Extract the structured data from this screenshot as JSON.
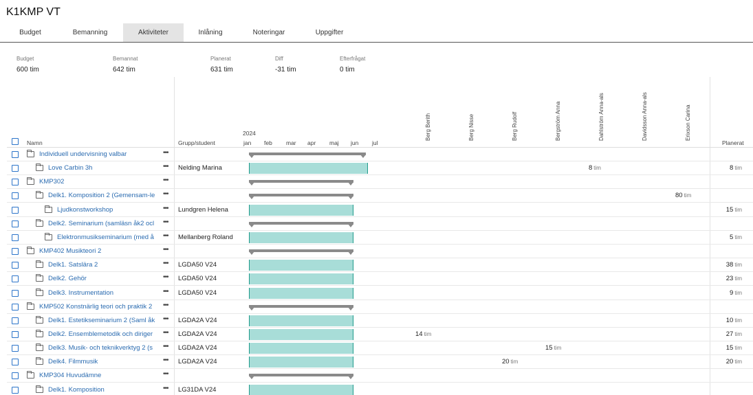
{
  "title": "K1KMP VT",
  "tabs": [
    "Budget",
    "Bemanning",
    "Aktiviteter",
    "Inlåning",
    "Noteringar",
    "Uppgifter"
  ],
  "summary": [
    {
      "label": "Budget",
      "value": "600 tim"
    },
    {
      "label": "Bemannat",
      "value": "642 tim"
    },
    {
      "label": "Planerat",
      "value": "631 tim"
    },
    {
      "label": "Diff",
      "value": "-31 tim"
    },
    {
      "label": "Efterfrågat",
      "value": "0 tim"
    }
  ],
  "headers": {
    "name": "Namn",
    "group": "Grupp/student",
    "year": "2024",
    "months": [
      "jan",
      "feb",
      "mar",
      "apr",
      "maj",
      "jun",
      "jul"
    ],
    "planned": "Planerat"
  },
  "persons": [
    "Berg Berith",
    "Berg Nisse",
    "Berg Rudolf",
    "Bergström Anna",
    "Dahlström Anna-als",
    "Davidsson Anna-als",
    "Erixson Carina"
  ],
  "unit": "tim",
  "rows": [
    {
      "name": "Individuell undervisning valbar",
      "indent": 0,
      "group": "",
      "summary": true,
      "bar_start": 0,
      "bar_end": 0.98,
      "person_idx": null,
      "hours": "",
      "planned": ""
    },
    {
      "name": "Love Carbin 3h",
      "indent": 1,
      "group": "Nelding Marina",
      "summary": false,
      "bar_start": 0,
      "bar_end": 1.0,
      "person_idx": 4,
      "hours": "8",
      "planned": "8"
    },
    {
      "name": "KMP302",
      "indent": 0,
      "group": "",
      "summary": true,
      "bar_start": 0,
      "bar_end": 0.88,
      "person_idx": null,
      "hours": "",
      "planned": ""
    },
    {
      "name": "Delk1. Komposition 2 (Gemensam-le",
      "indent": 1,
      "group": "",
      "summary": true,
      "bar_start": 0,
      "bar_end": 0.88,
      "person_idx": 6,
      "hours": "80",
      "planned": ""
    },
    {
      "name": "Ljudkonstworkshop",
      "indent": 2,
      "group": "Lundgren Helena",
      "summary": false,
      "bar_start": 0,
      "bar_end": 0.88,
      "person_idx": null,
      "hours": "",
      "planned": "15"
    },
    {
      "name": "Delk2. Seminarium (samläsn åk2 ocl",
      "indent": 1,
      "group": "",
      "summary": true,
      "bar_start": 0,
      "bar_end": 0.88,
      "person_idx": null,
      "hours": "",
      "planned": ""
    },
    {
      "name": "Elektronmusikseminarium (med å",
      "indent": 2,
      "group": "Mellanberg Roland",
      "summary": false,
      "bar_start": 0,
      "bar_end": 0.88,
      "person_idx": null,
      "hours": "",
      "planned": "5"
    },
    {
      "name": "KMP402 Musikteori 2",
      "indent": 0,
      "group": "",
      "summary": true,
      "bar_start": 0,
      "bar_end": 0.88,
      "person_idx": null,
      "hours": "",
      "planned": ""
    },
    {
      "name": "Delk1. Satslära 2",
      "indent": 1,
      "group": "LGDA50 V24",
      "summary": false,
      "bar_start": 0,
      "bar_end": 0.88,
      "person_idx": null,
      "hours": "",
      "planned": "38"
    },
    {
      "name": "Delk2. Gehör",
      "indent": 1,
      "group": "LGDA50 V24",
      "summary": false,
      "bar_start": 0,
      "bar_end": 0.88,
      "person_idx": null,
      "hours": "",
      "planned": "23"
    },
    {
      "name": "Delk3. Instrumentation",
      "indent": 1,
      "group": "LGDA50 V24",
      "summary": false,
      "bar_start": 0,
      "bar_end": 0.88,
      "person_idx": null,
      "hours": "",
      "planned": "9"
    },
    {
      "name": "KMP502 Konstnärlig teori och praktik 2",
      "indent": 0,
      "group": "",
      "summary": true,
      "bar_start": 0,
      "bar_end": 0.88,
      "person_idx": null,
      "hours": "",
      "planned": ""
    },
    {
      "name": "Delk1. Estetikseminarium 2 (Saml åk",
      "indent": 1,
      "group": "LGDA2A V24",
      "summary": false,
      "bar_start": 0,
      "bar_end": 0.88,
      "person_idx": null,
      "hours": "",
      "planned": "10"
    },
    {
      "name": "Delk2. Ensemblemetodik och diriger",
      "indent": 1,
      "group": "LGDA2A V24",
      "summary": false,
      "bar_start": 0,
      "bar_end": 0.88,
      "person_idx": 0,
      "hours": "14",
      "planned": "27"
    },
    {
      "name": "Delk3. Musik- och teknikverktyg 2 (s",
      "indent": 1,
      "group": "LGDA2A V24",
      "summary": false,
      "bar_start": 0,
      "bar_end": 0.88,
      "person_idx": 3,
      "hours": "15",
      "planned": "15"
    },
    {
      "name": "Delk4. Filmmusik",
      "indent": 1,
      "group": "LGDA2A V24",
      "summary": false,
      "bar_start": 0,
      "bar_end": 0.88,
      "person_idx": 2,
      "hours": "20",
      "planned": "20"
    },
    {
      "name": "KMP304 Huvudämne",
      "indent": 0,
      "group": "",
      "summary": true,
      "bar_start": 0,
      "bar_end": 0.88,
      "person_idx": null,
      "hours": "",
      "planned": ""
    },
    {
      "name": "Delk1. Komposition",
      "indent": 1,
      "group": "LG31DA V24",
      "summary": false,
      "bar_start": 0,
      "bar_end": 0.88,
      "person_idx": null,
      "hours": "",
      "planned": ""
    }
  ]
}
